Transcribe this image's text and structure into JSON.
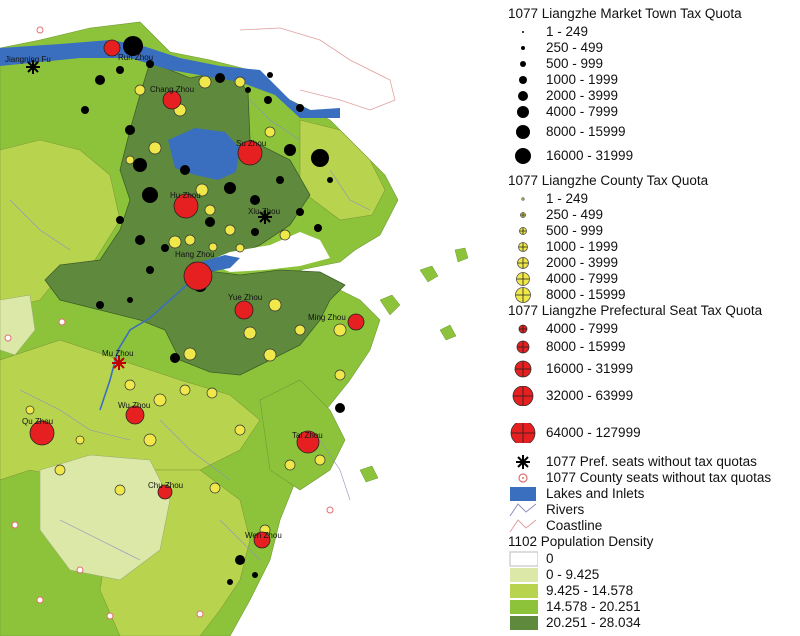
{
  "map": {
    "city_labels": [
      {
        "name": "Jiang Ning Fu",
        "text": "Jiangning Fu"
      },
      {
        "name": "Run Zhou",
        "text": "Run Zhou"
      },
      {
        "name": "Chang Zhou",
        "text": "Chang Zhou"
      },
      {
        "name": "Su Zhou",
        "text": "Su Zhou"
      },
      {
        "name": "Hu Zhou",
        "text": "Hu Zhou"
      },
      {
        "name": "Xiu Zhou",
        "text": "Xiu Zhou"
      },
      {
        "name": "Hang Zhou",
        "text": "Hang Zhou"
      },
      {
        "name": "Yue Zhou",
        "text": "Yue Zhou"
      },
      {
        "name": "Ming Zhou",
        "text": "Ming Zhou"
      },
      {
        "name": "Mu Zhou",
        "text": "Mu Zhou"
      },
      {
        "name": "Wu Zhou",
        "text": "Wu Zhou"
      },
      {
        "name": "Qu Zhou",
        "text": "Qu Zhou"
      },
      {
        "name": "Tai Zhou",
        "text": "Tai Zhou"
      },
      {
        "name": "Chu Zhou",
        "text": "Chu Zhou"
      },
      {
        "name": "Wen Zhou",
        "text": "Wen Zhou"
      }
    ],
    "colors": {
      "density_0": "#ffffff",
      "density_1": "#dbe8a8",
      "density_2": "#b8d44f",
      "density_3": "#8dc33b",
      "density_4": "#5f8a3d",
      "lakes": "#3a6fc0",
      "market_symbol": "#000000",
      "county_symbol": "#f0e84a",
      "prefectural_symbol": "#e62020",
      "county_seat_no_quota": "#e07070",
      "rivers": "#8e8ec0",
      "coastline": "#e0a0a0"
    }
  },
  "legend": {
    "market_title": "1077 Liangzhe  Market Town Tax Quota",
    "market_classes": [
      "1 - 249",
      "250 - 499",
      "500 - 999",
      "1000 - 1999",
      "2000 - 3999",
      "4000 - 7999",
      "8000 - 15999",
      "16000 - 31999"
    ],
    "county_title": "1077 Liangzhe County Tax Quota",
    "county_classes": [
      "1 - 249",
      "250 - 499",
      "500 - 999",
      "1000 - 1999",
      "2000 - 3999",
      "4000 - 7999",
      "8000 - 15999"
    ],
    "pref_title": "1077 Liangzhe Prefectural Seat Tax Quota",
    "pref_classes": [
      "4000 - 7999",
      "8000 - 15999",
      "16000 - 31999",
      "32000 - 63999",
      "64000 - 127999"
    ],
    "pref_no_quota": "1077 Pref. seats without tax quotas",
    "county_no_quota": "1077 County seats without tax quotas",
    "lakes": "Lakes and Inlets",
    "rivers": "Rivers",
    "coastline": "Coastline",
    "density_title": "1102 Population Density",
    "density_classes": [
      "0",
      "0 - 9.425",
      "9.425 - 14.578",
      "14.578 - 20.251",
      "20.251 - 28.034"
    ]
  }
}
